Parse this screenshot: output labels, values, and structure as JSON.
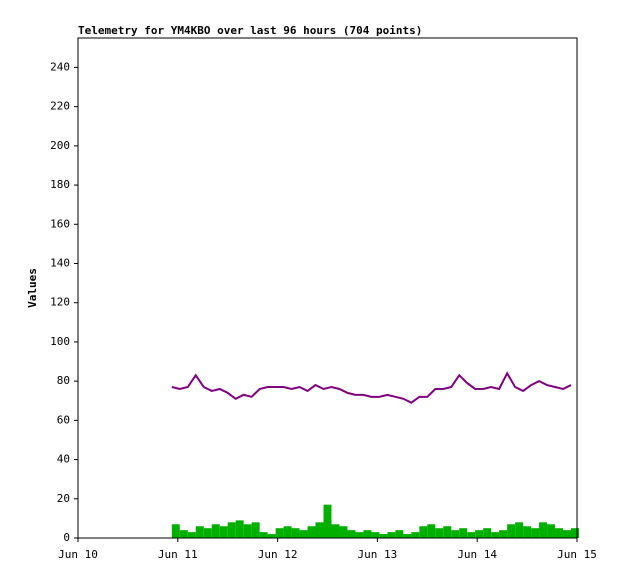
{
  "chart_data": {
    "type": "line",
    "title": "Telemetry for YM4KBO over last 96 hours (704 points)",
    "y_label": "Values",
    "x": [
      10.94,
      11.02,
      11.1,
      11.18,
      11.26,
      11.34,
      11.42,
      11.5,
      11.58,
      11.66,
      11.74,
      11.82,
      11.9,
      11.98,
      12.06,
      12.14,
      12.22,
      12.3,
      12.38,
      12.46,
      12.54,
      12.62,
      12.7,
      12.78,
      12.86,
      12.94,
      13.02,
      13.1,
      13.18,
      13.26,
      13.34,
      13.42,
      13.5,
      13.58,
      13.66,
      13.74,
      13.82,
      13.9,
      13.98,
      14.06,
      14.14,
      14.22,
      14.3,
      14.38,
      14.46,
      14.54,
      14.62,
      14.7,
      14.78,
      14.86,
      14.94
    ],
    "series": [
      {
        "color": "#800080",
        "mark": "line",
        "values": [
          77,
          76,
          77,
          83,
          77,
          75,
          76,
          74,
          71,
          73,
          72,
          76,
          77,
          77,
          77,
          76,
          77,
          75,
          78,
          76,
          77,
          76,
          74,
          73,
          73,
          72,
          72,
          73,
          72,
          71,
          69,
          72,
          72,
          76,
          76,
          77,
          83,
          79,
          76,
          76,
          77,
          76,
          84,
          77,
          75,
          78,
          80,
          78,
          77,
          76,
          78
        ]
      },
      {
        "color": "#00b000",
        "mark": "bar",
        "values": [
          7,
          4,
          3,
          6,
          5,
          7,
          6,
          8,
          9,
          7,
          8,
          3,
          2,
          5,
          6,
          5,
          4,
          6,
          8,
          17,
          7,
          6,
          4,
          3,
          4,
          3,
          2,
          3,
          4,
          2,
          3,
          6,
          7,
          5,
          6,
          4,
          5,
          3,
          4,
          5,
          3,
          4,
          7,
          8,
          6,
          5,
          8,
          7,
          5,
          4,
          5
        ]
      }
    ],
    "xlim": [
      10,
      15
    ],
    "xticks": [
      {
        "value": 10,
        "label": "Jun 10"
      },
      {
        "value": 11,
        "label": "Jun 11"
      },
      {
        "value": 12,
        "label": "Jun 12"
      },
      {
        "value": 13,
        "label": "Jun 13"
      },
      {
        "value": 14,
        "label": "Jun 14"
      },
      {
        "value": 15,
        "label": "Jun 15"
      }
    ],
    "ylim": [
      0,
      255
    ],
    "yticks": [
      0,
      20,
      40,
      60,
      80,
      100,
      120,
      140,
      160,
      180,
      200,
      220,
      240
    ]
  }
}
